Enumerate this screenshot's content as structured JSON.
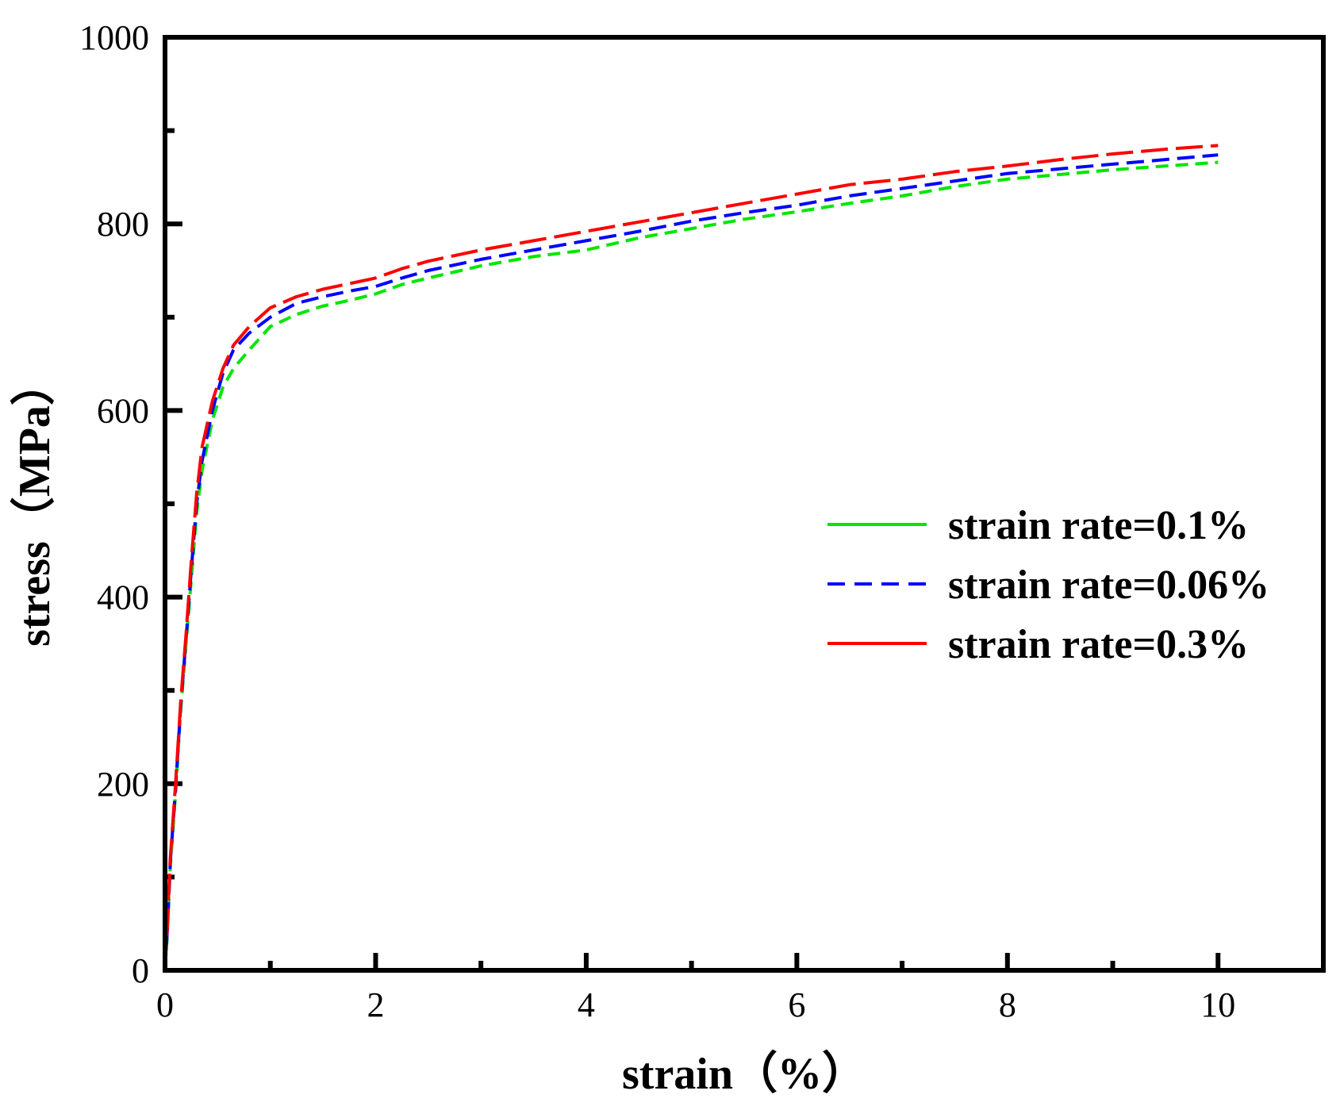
{
  "chart_data": {
    "type": "line",
    "title": "",
    "xlabel": "strain（%）",
    "ylabel": "stress（MPa）",
    "xlim": [
      0,
      11
    ],
    "ylim": [
      0,
      1000
    ],
    "xticks": [
      0,
      2,
      4,
      6,
      8,
      10
    ],
    "yticks": [
      0,
      200,
      400,
      600,
      800,
      1000
    ],
    "grid": false,
    "legend_position": "center-right",
    "series": [
      {
        "name": "strain rate=0.1%",
        "color": "#00e600",
        "dash": "short-dash",
        "x": [
          0,
          0.02,
          0.05,
          0.1,
          0.15,
          0.2,
          0.25,
          0.3,
          0.35,
          0.45,
          0.55,
          0.65,
          0.8,
          1.0,
          1.25,
          1.5,
          1.75,
          2.0,
          2.25,
          2.5,
          3.0,
          3.5,
          4.0,
          4.5,
          5.0,
          5.5,
          6.0,
          6.5,
          7.0,
          7.5,
          8.0,
          8.5,
          9.0,
          9.5,
          10.0
        ],
        "y": [
          0,
          35,
          110,
          190,
          280,
          350,
          420,
          490,
          535,
          590,
          625,
          645,
          665,
          690,
          703,
          712,
          718,
          725,
          735,
          742,
          755,
          765,
          772,
          785,
          795,
          805,
          813,
          822,
          830,
          840,
          848,
          853,
          858,
          862,
          866
        ]
      },
      {
        "name": "strain rate=0.06%",
        "color": "#0000ff",
        "dash": "dash",
        "x": [
          0,
          0.02,
          0.05,
          0.1,
          0.15,
          0.2,
          0.25,
          0.3,
          0.35,
          0.45,
          0.55,
          0.65,
          0.8,
          1.0,
          1.25,
          1.5,
          1.75,
          2.0,
          2.25,
          2.5,
          3.0,
          3.5,
          4.0,
          4.5,
          5.0,
          5.5,
          6.0,
          6.5,
          7.0,
          7.5,
          8.0,
          8.5,
          9.0,
          9.5,
          10.0
        ],
        "y": [
          0,
          40,
          115,
          195,
          285,
          355,
          430,
          500,
          545,
          600,
          640,
          665,
          683,
          700,
          715,
          722,
          728,
          733,
          742,
          750,
          762,
          772,
          782,
          792,
          803,
          812,
          820,
          830,
          838,
          846,
          854,
          859,
          864,
          869,
          874
        ]
      },
      {
        "name": "strain rate=0.3%",
        "color": "#ff0000",
        "dash": "long-dash",
        "x": [
          0,
          0.02,
          0.05,
          0.1,
          0.15,
          0.2,
          0.25,
          0.3,
          0.35,
          0.45,
          0.55,
          0.65,
          0.8,
          1.0,
          1.25,
          1.5,
          1.75,
          2.0,
          2.25,
          2.5,
          3.0,
          3.5,
          4.0,
          4.5,
          5.0,
          5.5,
          6.0,
          6.5,
          7.0,
          7.5,
          8.0,
          8.5,
          9.0,
          9.5,
          10.0
        ],
        "y": [
          0,
          45,
          120,
          200,
          290,
          360,
          440,
          510,
          560,
          610,
          645,
          670,
          690,
          710,
          722,
          730,
          736,
          742,
          752,
          760,
          772,
          782,
          792,
          802,
          812,
          822,
          832,
          842,
          848,
          856,
          862,
          869,
          875,
          880,
          884
        ]
      }
    ]
  }
}
